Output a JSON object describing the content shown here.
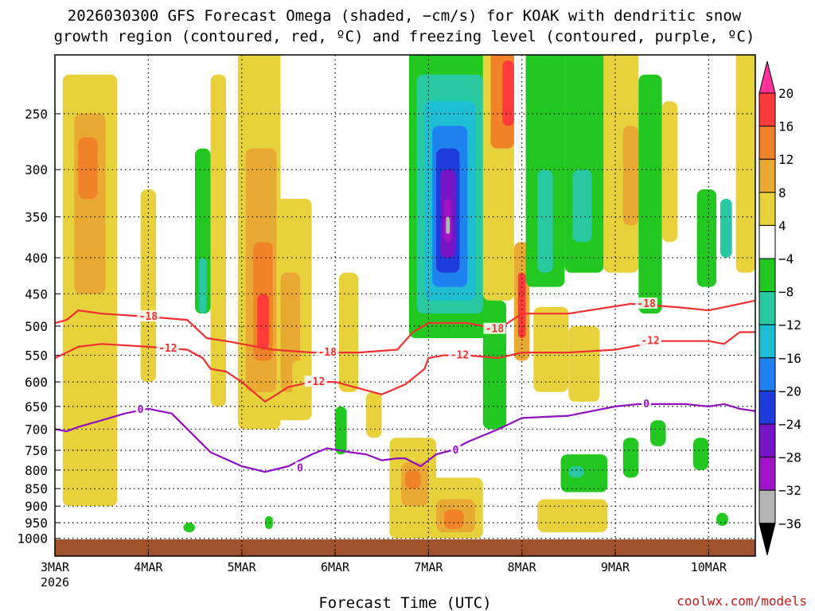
{
  "title_line1": "2026030300 GFS Forecast Omega (shaded, −cm/s) for KOAK with dendritic snow",
  "title_line2": "growth region (contoured, red, ºC) and freezing level (contoured, purple, ºC)",
  "credit": "coolwx.com/models",
  "colors": {
    "dgz_contour": "#f03030",
    "freezing_contour": "#9010c0",
    "ground": "#a0522d",
    "grid": "#000000"
  },
  "chart_data": {
    "type": "heatmap",
    "title": "2026030300 GFS Forecast Omega (shaded, −cm/s) for KOAK with dendritic snow growth region (contoured, red, ºC) and freezing level (contoured, purple, ºC)",
    "xlabel": "Forecast Time (UTC)",
    "ylabel": "",
    "xlim_hours": [
      0,
      180
    ],
    "x_ticks": [
      {
        "label": "3MAR",
        "sub": "2026",
        "hour": 0
      },
      {
        "label": "4MAR",
        "sub": "",
        "hour": 24
      },
      {
        "label": "5MAR",
        "sub": "",
        "hour": 48
      },
      {
        "label": "6MAR",
        "sub": "",
        "hour": 72
      },
      {
        "label": "7MAR",
        "sub": "",
        "hour": 96
      },
      {
        "label": "8MAR",
        "sub": "",
        "hour": 120
      },
      {
        "label": "9MAR",
        "sub": "",
        "hour": 144
      },
      {
        "label": "10MAR",
        "sub": "",
        "hour": 168
      }
    ],
    "y_axis": {
      "scale": "log-pressure",
      "ylim": [
        1000,
        200
      ],
      "inverted": true,
      "grid": true
    },
    "y_ticks": [
      250,
      300,
      350,
      400,
      450,
      500,
      550,
      600,
      650,
      700,
      750,
      800,
      850,
      900,
      950,
      1000
    ],
    "colorbar": {
      "labels": [
        "20",
        "16",
        "12",
        "8",
        "4",
        "−4",
        "−8",
        "−12",
        "−16",
        "−20",
        "−24",
        "−28",
        "−32",
        "−36"
      ],
      "levels": [
        20,
        16,
        12,
        8,
        4,
        -4,
        -8,
        -12,
        -16,
        -20,
        -24,
        -28,
        -32,
        -36
      ],
      "top_color": "#ff3399",
      "bands": [
        {
          "from": 16,
          "to": 20,
          "color": "#ff3a3a"
        },
        {
          "from": 12,
          "to": 16,
          "color": "#f08228"
        },
        {
          "from": 8,
          "to": 12,
          "color": "#e8aa32"
        },
        {
          "from": 4,
          "to": 8,
          "color": "#e8d23c"
        },
        {
          "from": -4,
          "to": 4,
          "color": "#ffffff"
        },
        {
          "from": -8,
          "to": -4,
          "color": "#22c820"
        },
        {
          "from": -12,
          "to": -8,
          "color": "#28c8a0"
        },
        {
          "from": -16,
          "to": -12,
          "color": "#1ebed2"
        },
        {
          "from": -20,
          "to": -16,
          "color": "#1e82f0"
        },
        {
          "from": -24,
          "to": -20,
          "color": "#1e3cdc"
        },
        {
          "from": -28,
          "to": -24,
          "color": "#7814c8"
        },
        {
          "from": -32,
          "to": -28,
          "color": "#a014c8"
        },
        {
          "from": -36,
          "to": -32,
          "color": "#b4b4b4"
        }
      ],
      "bottom_color": "#000000"
    },
    "omega_cells": [
      {
        "h0": 2,
        "h1": 16,
        "p0": 220,
        "p1": 900,
        "value": 6
      },
      {
        "h0": 5,
        "h1": 13,
        "p0": 250,
        "p1": 450,
        "value": 10
      },
      {
        "h0": 6,
        "h1": 11,
        "p0": 270,
        "p1": 330,
        "value": 14
      },
      {
        "h0": 22,
        "h1": 26,
        "p0": 320,
        "p1": 600,
        "value": 5
      },
      {
        "h0": 36,
        "h1": 40,
        "p0": 280,
        "p1": 480,
        "value": -6
      },
      {
        "h0": 37,
        "h1": 39,
        "p0": 400,
        "p1": 480,
        "value": -10
      },
      {
        "h0": 40,
        "h1": 44,
        "p0": 220,
        "p1": 650,
        "value": 5
      },
      {
        "h0": 47,
        "h1": 58,
        "p0": 200,
        "p1": 700,
        "value": 6
      },
      {
        "h0": 49,
        "h1": 57,
        "p0": 280,
        "p1": 620,
        "value": 10
      },
      {
        "h0": 51,
        "h1": 56,
        "p0": 380,
        "p1": 560,
        "value": 14
      },
      {
        "h0": 52,
        "h1": 55,
        "p0": 450,
        "p1": 540,
        "value": 18
      },
      {
        "h0": 57,
        "h1": 66,
        "p0": 330,
        "p1": 680,
        "value": 6
      },
      {
        "h0": 58,
        "h1": 63,
        "p0": 420,
        "p1": 620,
        "value": 10
      },
      {
        "h0": 61,
        "h1": 64,
        "p0": 560,
        "p1": 680,
        "value": 6
      },
      {
        "h0": 73,
        "h1": 78,
        "p0": 420,
        "p1": 620,
        "value": 5
      },
      {
        "h0": 72,
        "h1": 75,
        "p0": 650,
        "p1": 760,
        "value": -6
      },
      {
        "h0": 86,
        "h1": 98,
        "p0": 720,
        "p1": 1000,
        "value": 6
      },
      {
        "h0": 89,
        "h1": 96,
        "p0": 780,
        "p1": 900,
        "value": 10
      },
      {
        "h0": 90,
        "h1": 94,
        "p0": 800,
        "p1": 850,
        "value": 14
      },
      {
        "h0": 96,
        "h1": 110,
        "p0": 820,
        "p1": 1000,
        "value": 6
      },
      {
        "h0": 98,
        "h1": 108,
        "p0": 880,
        "p1": 980,
        "value": 10
      },
      {
        "h0": 100,
        "h1": 105,
        "p0": 910,
        "p1": 970,
        "value": 14
      },
      {
        "h0": 91,
        "h1": 112,
        "p0": 200,
        "p1": 520,
        "value": -6
      },
      {
        "h0": 93,
        "h1": 110,
        "p0": 220,
        "p1": 480,
        "value": -10
      },
      {
        "h0": 95,
        "h1": 108,
        "p0": 240,
        "p1": 460,
        "value": -14
      },
      {
        "h0": 97,
        "h1": 106,
        "p0": 260,
        "p1": 440,
        "value": -18
      },
      {
        "h0": 98,
        "h1": 104,
        "p0": 280,
        "p1": 420,
        "value": -22
      },
      {
        "h0": 99,
        "h1": 103,
        "p0": 300,
        "p1": 400,
        "value": -26
      },
      {
        "h0": 100,
        "h1": 102,
        "p0": 330,
        "p1": 380,
        "value": -30
      },
      {
        "h0": 100.5,
        "h1": 101.5,
        "p0": 350,
        "p1": 370,
        "value": -34
      },
      {
        "h0": 110,
        "h1": 118,
        "p0": 200,
        "p1": 460,
        "value": 6
      },
      {
        "h0": 112,
        "h1": 118,
        "p0": 200,
        "p1": 280,
        "value": 12
      },
      {
        "h0": 115,
        "h1": 118,
        "p0": 210,
        "p1": 260,
        "value": 16
      },
      {
        "h0": 110,
        "h1": 116,
        "p0": 460,
        "p1": 700,
        "value": -6
      },
      {
        "h0": 118,
        "h1": 122,
        "p0": 380,
        "p1": 560,
        "value": 10
      },
      {
        "h0": 119,
        "h1": 121,
        "p0": 420,
        "p1": 520,
        "value": 16
      },
      {
        "h0": 121,
        "h1": 131,
        "p0": 200,
        "p1": 440,
        "value": -6
      },
      {
        "h0": 124,
        "h1": 128,
        "p0": 300,
        "p1": 420,
        "value": -10
      },
      {
        "h0": 131,
        "h1": 141,
        "p0": 200,
        "p1": 420,
        "value": -6
      },
      {
        "h0": 133,
        "h1": 138,
        "p0": 300,
        "p1": 380,
        "value": -10
      },
      {
        "h0": 141,
        "h1": 150,
        "p0": 200,
        "p1": 420,
        "value": 5
      },
      {
        "h0": 146,
        "h1": 150,
        "p0": 260,
        "p1": 360,
        "value": 9
      },
      {
        "h0": 150,
        "h1": 156,
        "p0": 220,
        "p1": 480,
        "value": -6
      },
      {
        "h0": 156,
        "h1": 160,
        "p0": 240,
        "p1": 380,
        "value": 6
      },
      {
        "h0": 165,
        "h1": 170,
        "p0": 320,
        "p1": 440,
        "value": -6
      },
      {
        "h0": 171,
        "h1": 174,
        "p0": 330,
        "p1": 400,
        "value": -10
      },
      {
        "h0": 175,
        "h1": 180,
        "p0": 200,
        "p1": 420,
        "value": 5
      },
      {
        "h0": 123,
        "h1": 132,
        "p0": 470,
        "p1": 620,
        "value": 5
      },
      {
        "h0": 132,
        "h1": 140,
        "p0": 500,
        "p1": 640,
        "value": 5
      },
      {
        "h0": 130,
        "h1": 142,
        "p0": 760,
        "p1": 860,
        "value": -6
      },
      {
        "h0": 132,
        "h1": 136,
        "p0": 790,
        "p1": 820,
        "value": -10
      },
      {
        "h0": 124,
        "h1": 142,
        "p0": 880,
        "p1": 980,
        "value": 5
      },
      {
        "h0": 146,
        "h1": 150,
        "p0": 720,
        "p1": 820,
        "value": -6
      },
      {
        "h0": 153,
        "h1": 157,
        "p0": 680,
        "p1": 740,
        "value": -6
      },
      {
        "h0": 164,
        "h1": 168,
        "p0": 720,
        "p1": 800,
        "value": -6
      },
      {
        "h0": 170,
        "h1": 173,
        "p0": 920,
        "p1": 960,
        "value": -6
      },
      {
        "h0": 54,
        "h1": 56,
        "p0": 930,
        "p1": 970,
        "value": -6
      },
      {
        "h0": 33,
        "h1": 36,
        "p0": 950,
        "p1": 980,
        "value": -6
      },
      {
        "h0": 80,
        "h1": 84,
        "p0": 620,
        "p1": 720,
        "value": 5
      }
    ],
    "series": [
      {
        "name": "-18",
        "color": "#f03030",
        "x": [
          0,
          3,
          6,
          12,
          24,
          34,
          39,
          44,
          48,
          56,
          66,
          78,
          88,
          92,
          96,
          106,
          114,
          120,
          132,
          148,
          160,
          168,
          172,
          180
        ],
        "y": [
          495,
          490,
          475,
          480,
          485,
          490,
          520,
          525,
          530,
          540,
          545,
          545,
          540,
          510,
          495,
          495,
          505,
          480,
          480,
          465,
          470,
          475,
          470,
          460
        ],
        "labels": [
          {
            "x": 24,
            "y": 485
          },
          {
            "x": 70,
            "y": 545
          },
          {
            "x": 113,
            "y": 505
          },
          {
            "x": 152,
            "y": 465
          }
        ]
      },
      {
        "name": "-12",
        "color": "#f03030",
        "x": [
          0,
          3,
          6,
          12,
          24,
          34,
          38,
          40,
          44,
          48,
          54,
          60,
          66,
          72,
          84,
          90,
          95,
          96,
          100,
          106,
          114,
          120,
          132,
          144,
          156,
          168,
          172,
          176,
          180
        ],
        "y": [
          555,
          545,
          535,
          530,
          535,
          540,
          555,
          575,
          580,
          600,
          640,
          610,
          600,
          600,
          625,
          605,
          575,
          555,
          550,
          550,
          555,
          545,
          545,
          540,
          525,
          525,
          530,
          510,
          510
        ],
        "labels": [
          {
            "x": 29,
            "y": 538
          },
          {
            "x": 67,
            "y": 600
          },
          {
            "x": 104,
            "y": 550
          },
          {
            "x": 153,
            "y": 525
          }
        ]
      },
      {
        "name": "0",
        "color": "#9010c0",
        "x": [
          0,
          3,
          6,
          12,
          18,
          24,
          30,
          40,
          48,
          54,
          60,
          66,
          70,
          76,
          80,
          84,
          88,
          90,
          94,
          98,
          102,
          106,
          114,
          120,
          132,
          144,
          150,
          156,
          162,
          168,
          172,
          176,
          180
        ],
        "y": [
          700,
          705,
          695,
          680,
          665,
          655,
          665,
          755,
          790,
          805,
          790,
          760,
          745,
          755,
          760,
          775,
          770,
          770,
          790,
          760,
          750,
          730,
          700,
          675,
          670,
          650,
          645,
          645,
          645,
          650,
          645,
          655,
          660
        ],
        "labels": [
          {
            "x": 22,
            "y": 657
          },
          {
            "x": 63,
            "y": 795
          },
          {
            "x": 103,
            "y": 750
          },
          {
            "x": 152,
            "y": 645
          }
        ]
      }
    ]
  }
}
